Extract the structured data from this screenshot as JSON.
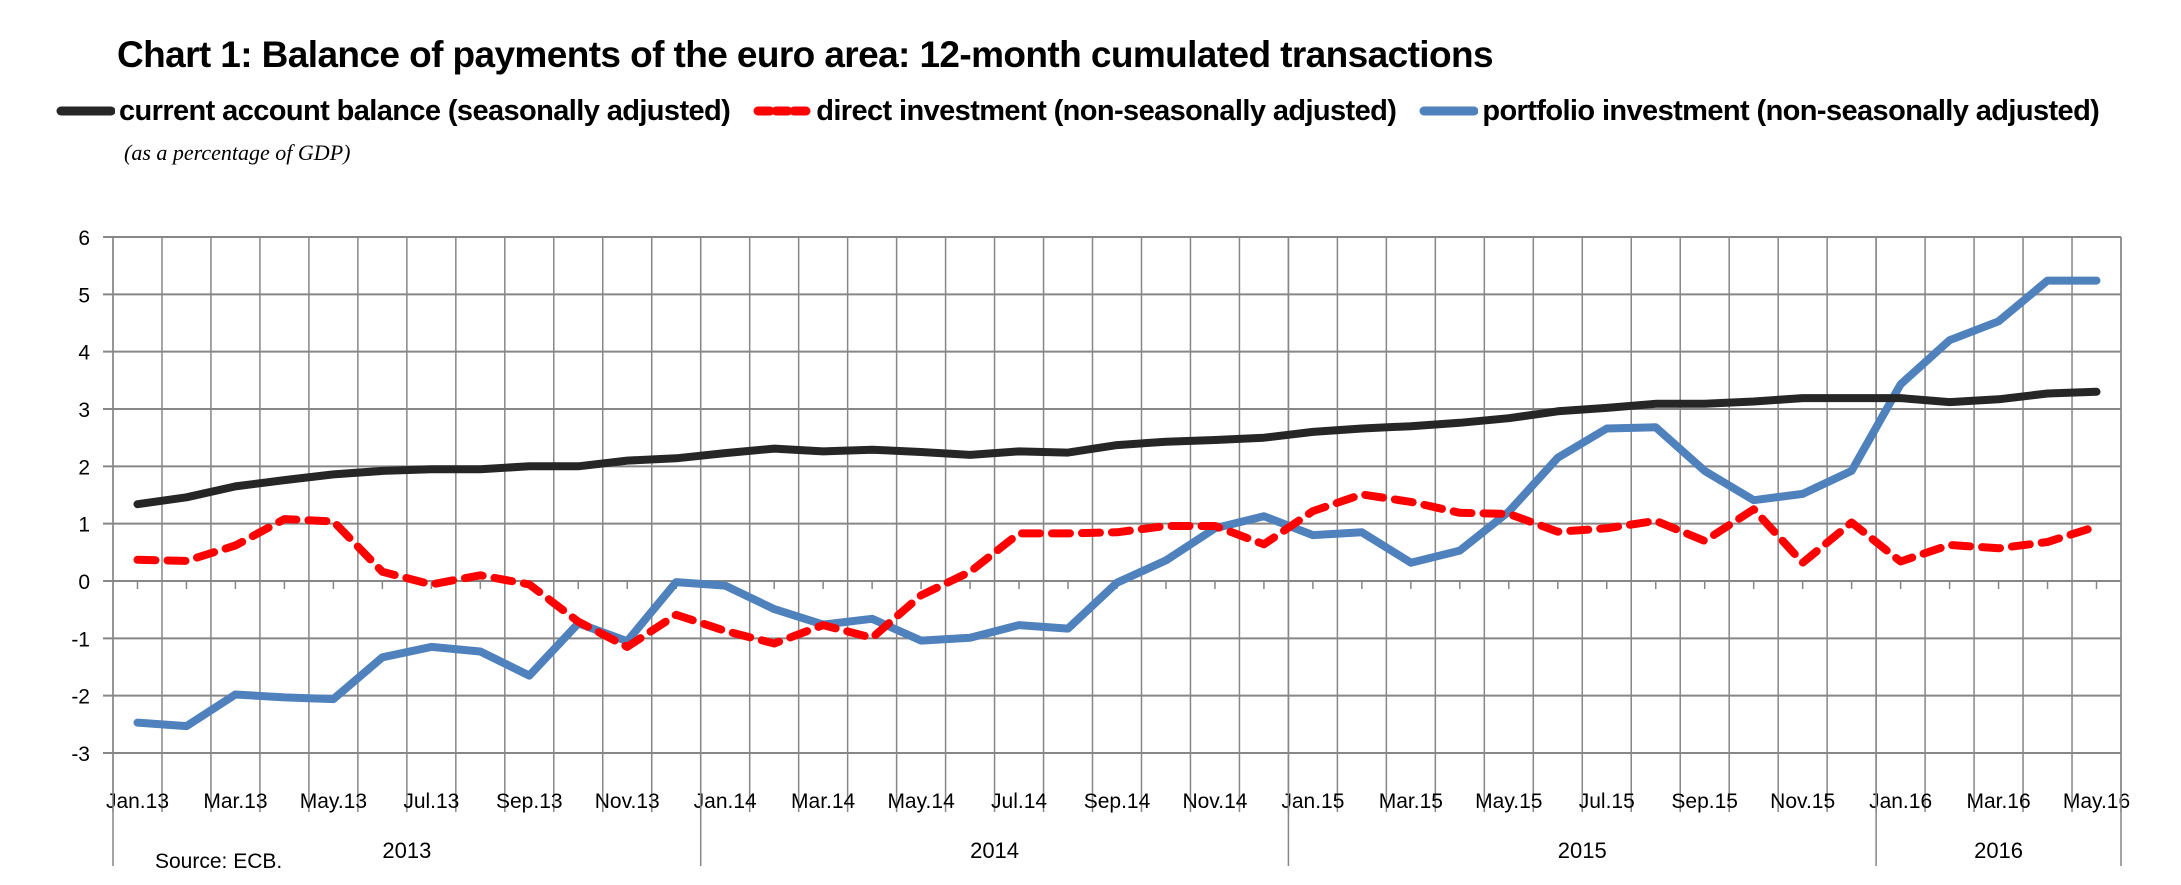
{
  "chart_data": {
    "type": "line",
    "title": "Chart 1: Balance of payments of the euro area: 12-month cumulated transactions",
    "subtitle": "(as a percentage of GDP)",
    "source": "Source: ECB.",
    "xlabel": "",
    "ylabel": "",
    "ylim": [
      -3,
      6
    ],
    "yticks": [
      "6",
      "5",
      "4",
      "3",
      "2",
      "1",
      "0",
      "-1",
      "-2",
      "-3"
    ],
    "ytick_values": [
      6,
      5,
      4,
      3,
      2,
      1,
      0,
      -1,
      -2,
      -3
    ],
    "grid": true,
    "legend_position": "top",
    "x": [
      "Jan.13",
      "Feb.13",
      "Mar.13",
      "Apr.13",
      "May.13",
      "Jun.13",
      "Jul.13",
      "Aug.13",
      "Sep.13",
      "Oct.13",
      "Nov.13",
      "Dec.13",
      "Jan.14",
      "Feb.14",
      "Mar.14",
      "Apr.14",
      "May.14",
      "Jun.14",
      "Jul.14",
      "Aug.14",
      "Sep.14",
      "Oct.14",
      "Nov.14",
      "Dec.14",
      "Jan.15",
      "Feb.15",
      "Mar.15",
      "Apr.15",
      "May.15",
      "Jun.15",
      "Jul.15",
      "Aug.15",
      "Sep.15",
      "Oct.15",
      "Nov.15",
      "Dec.15",
      "Jan.16",
      "Feb.16",
      "Mar.16",
      "Apr.16",
      "May.16"
    ],
    "xtick_labels": [
      "Jan.13",
      "Mar.13",
      "May.13",
      "Jul.13",
      "Sep.13",
      "Nov.13",
      "Jan.14",
      "Mar.14",
      "May.14",
      "Jul.14",
      "Sep.14",
      "Nov.14",
      "Jan.15",
      "Mar.15",
      "May.15",
      "Jul.15",
      "Sep.15",
      "Nov.15",
      "Jan.16",
      "Mar.16",
      "May.16"
    ],
    "years": [
      {
        "label": "2013",
        "start": 0,
        "end": 12
      },
      {
        "label": "2014",
        "start": 12,
        "end": 24
      },
      {
        "label": "2015",
        "start": 24,
        "end": 36
      },
      {
        "label": "2016",
        "start": 36,
        "end": 41
      }
    ],
    "series": [
      {
        "name": "current account balance (seasonally adjusted)",
        "color": "#262626",
        "style": "solid",
        "values": [
          1.34,
          1.46,
          1.65,
          1.76,
          1.86,
          1.92,
          1.95,
          1.95,
          2.0,
          2.0,
          2.1,
          2.14,
          2.23,
          2.31,
          2.26,
          2.29,
          2.25,
          2.2,
          2.26,
          2.24,
          2.37,
          2.43,
          2.46,
          2.5,
          2.6,
          2.66,
          2.7,
          2.76,
          2.84,
          2.96,
          3.02,
          3.09,
          3.09,
          3.13,
          3.19,
          3.19,
          3.19,
          3.12,
          3.17,
          3.27,
          3.3
        ]
      },
      {
        "name": "direct investment (non-seasonally adjusted)",
        "color": "#ff0000",
        "style": "dashed",
        "values": [
          0.37,
          0.35,
          0.62,
          1.08,
          1.04,
          0.16,
          -0.06,
          0.1,
          -0.06,
          -0.71,
          -1.15,
          -0.59,
          -0.87,
          -1.09,
          -0.77,
          -0.99,
          -0.25,
          0.16,
          0.83,
          0.83,
          0.85,
          0.96,
          0.96,
          0.64,
          1.22,
          1.51,
          1.38,
          1.19,
          1.17,
          0.86,
          0.92,
          1.05,
          0.7,
          1.25,
          0.32,
          1.02,
          0.34,
          0.63,
          0.57,
          0.68,
          0.95
        ]
      },
      {
        "name": "portfolio investment (non-seasonally adjusted)",
        "color": "#4f81bd",
        "style": "solid",
        "values": [
          -2.47,
          -2.53,
          -1.98,
          -2.03,
          -2.06,
          -1.33,
          -1.15,
          -1.23,
          -1.65,
          -0.74,
          -1.05,
          -0.02,
          -0.08,
          -0.49,
          -0.76,
          -0.66,
          -1.04,
          -0.99,
          -0.77,
          -0.83,
          -0.03,
          0.36,
          0.92,
          1.13,
          0.8,
          0.85,
          0.32,
          0.53,
          1.21,
          2.15,
          2.66,
          2.68,
          1.92,
          1.41,
          1.52,
          1.92,
          3.43,
          4.2,
          4.53,
          5.24,
          5.24
        ]
      }
    ]
  }
}
